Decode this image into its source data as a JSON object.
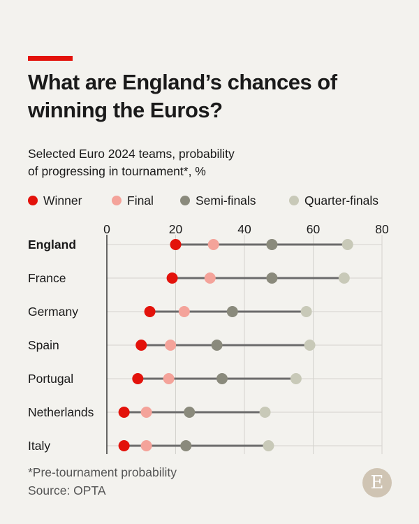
{
  "title": "What are England’s chances of winning the Euros?",
  "subtitle_line1": "Selected Euro 2024 teams, probability",
  "subtitle_line2": "of progressing in tournament*, %",
  "footnote": "*Pre-tournament probability",
  "source": "Source: OPTA",
  "logo_letter": "E",
  "colors": {
    "accent": "#e3120b",
    "background": "#f3f2ee",
    "connector": "#6b6b6b",
    "winner": "#e3120b",
    "final": "#f4a39a",
    "semi_finals": "#8a8a7c",
    "quarter_finals": "#c8c9b8"
  },
  "chart_data": {
    "type": "scatter",
    "orientation": "horizontal-dot-plot",
    "categories": [
      "England",
      "France",
      "Germany",
      "Spain",
      "Portugal",
      "Netherlands",
      "Italy"
    ],
    "highlight_category": "England",
    "xlim": [
      0,
      80
    ],
    "xticks": [
      0,
      20,
      40,
      60,
      80
    ],
    "grid": true,
    "legend_position": "top",
    "series": [
      {
        "name": "Winner",
        "color": "#e3120b",
        "values": [
          20,
          19,
          12.5,
          10,
          9,
          5,
          5
        ]
      },
      {
        "name": "Final",
        "color": "#f4a39a",
        "values": [
          31,
          30,
          22.5,
          18.5,
          18,
          11.5,
          11.5
        ]
      },
      {
        "name": "Semi-finals",
        "color": "#8a8a7c",
        "values": [
          48,
          48,
          36.5,
          32,
          33.5,
          24,
          23
        ]
      },
      {
        "name": "Quarter-finals",
        "color": "#c8c9b8",
        "values": [
          70,
          69,
          58,
          59,
          55,
          46,
          47
        ]
      }
    ]
  }
}
